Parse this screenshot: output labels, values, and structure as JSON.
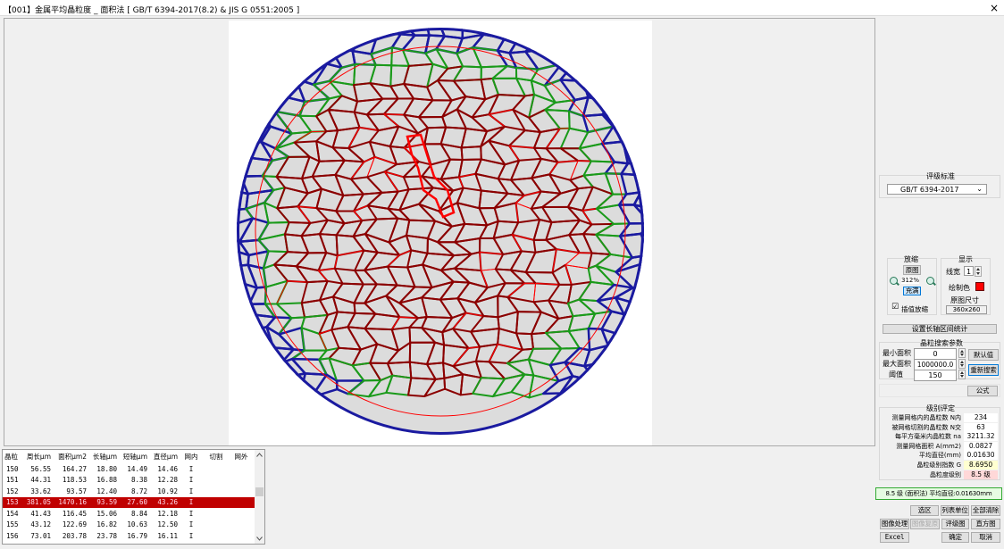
{
  "window": {
    "title": "【001】金属平均晶粒度 _ 面积法 [ GB/T 6394-2017(8.2) & JIS G 0551:2005 ]",
    "close": "×"
  },
  "colors": {
    "boundary": "#8b0000",
    "highlight": "#ff0000",
    "cut_grains": "#1a9a1a",
    "outer_grains": "#1a1aa0",
    "grain_fill": "#dcdcdc",
    "selected_row": "#c00000"
  },
  "standard": {
    "label": "评级标准",
    "value": "GB/T 6394-2017"
  },
  "zoom": {
    "label": "放缩",
    "original": "原图",
    "percent": "312%",
    "fill": "充满",
    "interp": "插值放缩",
    "interp_checked": true
  },
  "display": {
    "label": "显示",
    "line_width_label": "线宽",
    "line_width": "1",
    "draw_color_label": "绘制色",
    "draw_color": "#ff0000",
    "orig_size_label": "原图尺寸",
    "orig_size": "360x260"
  },
  "axis_stats_button": "设置长轴区间统计",
  "search": {
    "label": "晶粒搜索参数",
    "min_area_label": "最小面积",
    "min_area": "0",
    "max_area_label": "最大面积",
    "max_area": "1000000.0",
    "threshold_label": "阈值",
    "threshold": "150",
    "default_button": "默认值",
    "research_button": "重新搜索"
  },
  "formula_button": "公式",
  "rating": {
    "label": "级别评定",
    "rows": [
      {
        "label": "测量网格内的晶粒数 N内",
        "value": "234"
      },
      {
        "label": "被网格切割的晶粒数 N交",
        "value": "63"
      },
      {
        "label": "每平方毫米内晶粒数 na",
        "value": "3211.32"
      },
      {
        "label": "测量网格面积 A(mm2)",
        "value": "0.0827"
      },
      {
        "label": "平均直径(mm)",
        "value": "0.01630"
      },
      {
        "label": "晶粒级别指数 G",
        "value": "8.6950"
      },
      {
        "label": "晶粒度级别",
        "value": "8.5 级"
      }
    ]
  },
  "result": "8.5 级 (面积法) 平均直径:0.01630mm",
  "buttons": {
    "select_region": "选区",
    "list_unit": "列表单位",
    "clear_all": "全部清除",
    "image_process": "图像处理",
    "image_restore": "图像复原",
    "rating_chart": "评级图",
    "histogram": "直方图",
    "excel": "Excel",
    "ok": "确定",
    "cancel": "取消"
  },
  "table": {
    "headers": [
      "晶粒",
      "周长μm",
      "面积μm2",
      "长轴μm",
      "短轴μm",
      "直径μm",
      "网内",
      "切割",
      "网外"
    ],
    "rows": [
      [
        "150",
        "56.55",
        "164.27",
        "18.80",
        "14.49",
        "14.46",
        "I",
        "",
        ""
      ],
      [
        "151",
        "44.31",
        "118.53",
        "16.88",
        "8.38",
        "12.28",
        "I",
        "",
        ""
      ],
      [
        "152",
        "33.62",
        "93.57",
        "12.40",
        "8.72",
        "10.92",
        "I",
        "",
        ""
      ],
      [
        "153",
        "381.05",
        "1470.16",
        "93.59",
        "27.60",
        "43.26",
        "I",
        "",
        ""
      ],
      [
        "154",
        "41.43",
        "116.45",
        "15.06",
        "8.84",
        "12.18",
        "I",
        "",
        ""
      ],
      [
        "155",
        "43.12",
        "122.69",
        "16.82",
        "10.63",
        "12.50",
        "I",
        "",
        ""
      ],
      [
        "156",
        "73.01",
        "203.78",
        "23.78",
        "16.79",
        "16.11",
        "I",
        "",
        ""
      ]
    ],
    "selected_index": 3
  }
}
